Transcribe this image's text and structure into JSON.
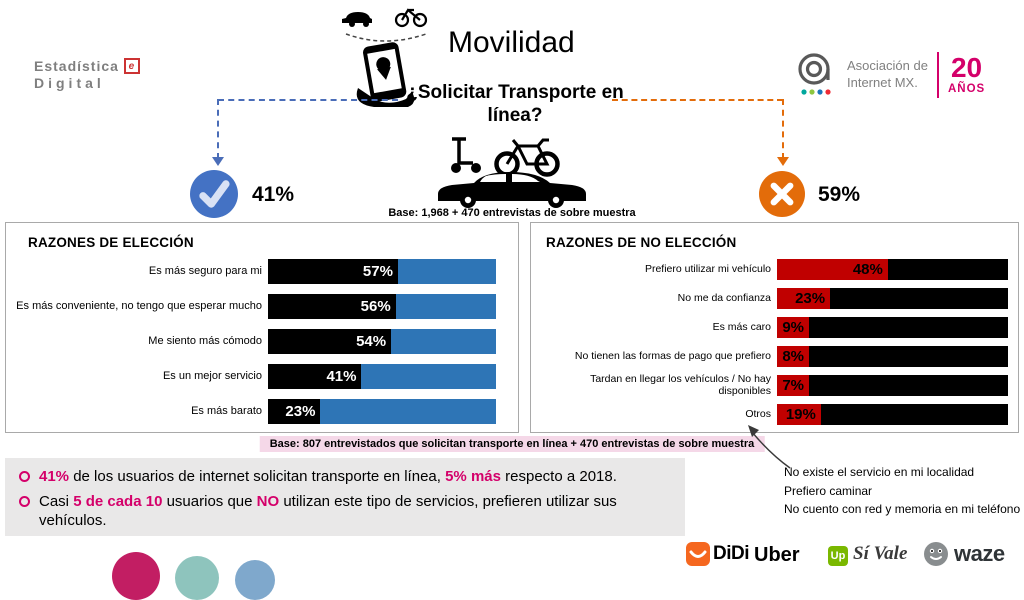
{
  "page": {
    "title": "Movilidad",
    "subtitle": "¿Solicitar Transporte en línea?",
    "base_top": "Base: 1,968 + 470 entrevistas de sobre muestra",
    "base_bottom": "Base: 807 entrevistados que solicitan transporte en línea + 470 entrevistas de sobre muestra"
  },
  "logos": {
    "estadistica": {
      "line1": "Estadística",
      "line2": "Digital",
      "cube_letter": "e"
    },
    "asociacion": {
      "line1": "Asociación de",
      "line2": "Internet MX.",
      "years_number": "20",
      "years_word": "AÑOS"
    }
  },
  "split": {
    "yes_pct": "41%",
    "no_pct": "59%"
  },
  "colors": {
    "blue": "#2e75b6",
    "check_blue": "#4472c4",
    "orange": "#e36c0a",
    "red": "#c00000",
    "magenta": "#d4006a",
    "black": "#000000"
  },
  "chart_data": [
    {
      "type": "bar",
      "orientation": "horizontal",
      "title": "RAZONES DE ELECCIÓN",
      "xlim": [
        0,
        100
      ],
      "unit": "%",
      "categories": [
        "Es más seguro para mi",
        "Es más conveniente, no tengo que esperar mucho",
        "Me siento más cómodo",
        "Es un mejor servicio",
        "Es más barato"
      ],
      "values": [
        57,
        56,
        54,
        41,
        23
      ],
      "value_labels": [
        "57%",
        "56%",
        "54%",
        "41%",
        "23%"
      ],
      "bar_color": "#000000",
      "remainder_color": "#2e75b6",
      "value_text_color": "#ffffff"
    },
    {
      "type": "bar",
      "orientation": "horizontal",
      "title": "RAZONES DE NO ELECCIÓN",
      "xlim": [
        0,
        100
      ],
      "unit": "%",
      "categories": [
        "Prefiero utilizar mi vehículo",
        "No me da confianza",
        "Es más caro",
        "No tienen las formas de pago que prefiero",
        "Tardan en llegar los vehículos / No hay disponibles",
        "Otros"
      ],
      "values": [
        48,
        23,
        9,
        8,
        7,
        19
      ],
      "value_labels": [
        "48%",
        "23%",
        "9%",
        "8%",
        "7%",
        "19%"
      ],
      "bar_color": "#c00000",
      "remainder_color": "#000000",
      "value_text_color": "#000000"
    }
  ],
  "insights": [
    {
      "parts": [
        "41%",
        " de los usuarios de internet solicitan transporte en línea, ",
        "5% más",
        " respecto a 2018."
      ]
    },
    {
      "parts": [
        "Casi ",
        "5 de cada 10",
        " usuarios que ",
        "NO",
        " utilizan este tipo de servicios, prefieren utilizar sus vehículos."
      ]
    }
  ],
  "otros_note": {
    "lines": [
      "No existe el servicio en mi localidad",
      "Prefiero caminar",
      "No cuento con red y memoria en mi teléfono"
    ]
  },
  "footer": {
    "didi": "DiDi",
    "uber": "Uber",
    "up": "Up",
    "sivale": "Sí Vale",
    "waze": "waze"
  }
}
